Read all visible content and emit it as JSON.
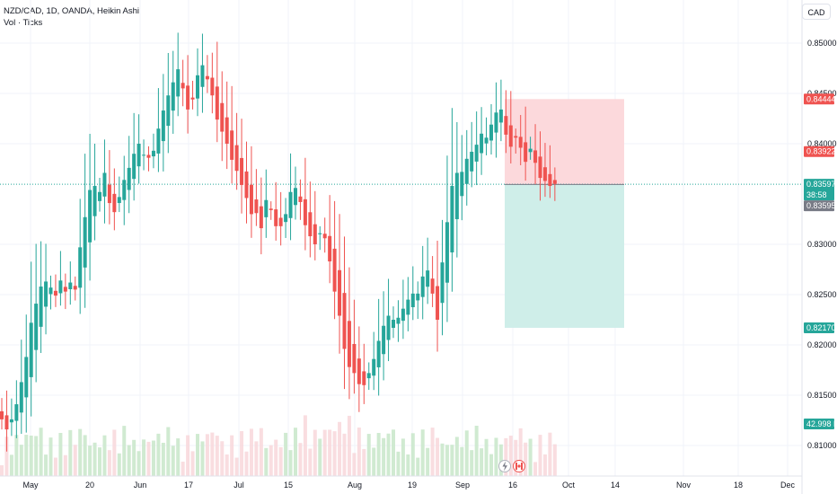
{
  "header": {
    "title": "NZD/CAD, 1D, OANDA, Heikin Ashi",
    "subtitle": "Vol · Ticks"
  },
  "currency_button": "CAD",
  "icons": [
    "flash-icon",
    "canada-flag-icon"
  ],
  "colors": {
    "up": "#26a69a",
    "down": "#ef5350",
    "profit_zone": "#cfeee9",
    "loss_zone": "#fcd9dc",
    "grid": "#f0f3fa"
  },
  "price_labels": {
    "stop": "0.84444",
    "entry_alt": "0.83922",
    "last": "0.83597",
    "countdown": "38:58",
    "entry": "0.83595",
    "target": "0.82170",
    "volume": "42.998 K"
  },
  "chart_data": {
    "type": "candlestick",
    "style": "Heikin Ashi",
    "title": "NZD/CAD, 1D, OANDA, Heikin Ashi",
    "y_ticks": [
      "0.85000",
      "0.84500",
      "0.84000",
      "0.83000",
      "0.82500",
      "0.82000",
      "0.81500",
      "0.81000"
    ],
    "x_ticks": [
      "May",
      "20",
      "Jun",
      "17",
      "Jul",
      "15",
      "Aug",
      "19",
      "Sep",
      "16",
      "Oct",
      "14",
      "Nov",
      "18",
      "Dec"
    ],
    "ylim": [
      0.8075,
      0.8535
    ],
    "grid": true,
    "position": {
      "type": "short",
      "entry": 0.83595,
      "stop": 0.84444,
      "target": 0.8217
    },
    "candles_close": [
      0.8126,
      0.8116,
      0.8126,
      0.8141,
      0.8163,
      0.8188,
      0.8222,
      0.8241,
      0.8258,
      0.8263,
      0.8257,
      0.8249,
      0.8264,
      0.8253,
      0.8262,
      0.8255,
      0.8297,
      0.8327,
      0.8354,
      0.8358,
      0.8352,
      0.8371,
      0.8341,
      0.8332,
      0.8347,
      0.8364,
      0.8376,
      0.839,
      0.84,
      0.8389,
      0.8386,
      0.8393,
      0.8415,
      0.8433,
      0.8448,
      0.8461,
      0.8474,
      0.8455,
      0.8434,
      0.8444,
      0.8468,
      0.8478,
      0.8464,
      0.8448,
      0.8424,
      0.8412,
      0.84,
      0.8384,
      0.8373,
      0.8359,
      0.8346,
      0.833,
      0.8331,
      0.8316,
      0.8344,
      0.8334,
      0.8318,
      0.8318,
      0.833,
      0.8352,
      0.8356,
      0.8342,
      0.8319,
      0.8308,
      0.83,
      0.8311,
      0.8306,
      0.8283,
      0.8253,
      0.8229,
      0.8196,
      0.8178,
      0.8172,
      0.8161,
      0.816,
      0.8172,
      0.8186,
      0.8204,
      0.8219,
      0.8229,
      0.8225,
      0.8227,
      0.8236,
      0.8245,
      0.8251,
      0.8251,
      0.8268,
      0.8274,
      0.8251,
      0.8225,
      0.8282,
      0.8322,
      0.8358,
      0.8371,
      0.8372,
      0.8385,
      0.8392,
      0.8399,
      0.841,
      0.8406,
      0.8419,
      0.8431,
      0.8434,
      0.8409,
      0.8397,
      0.8406,
      0.8396,
      0.8382,
      0.8395,
      0.8381,
      0.8366,
      0.8363,
      0.8358,
      0.836
    ],
    "volume_label": "42.998 K"
  }
}
